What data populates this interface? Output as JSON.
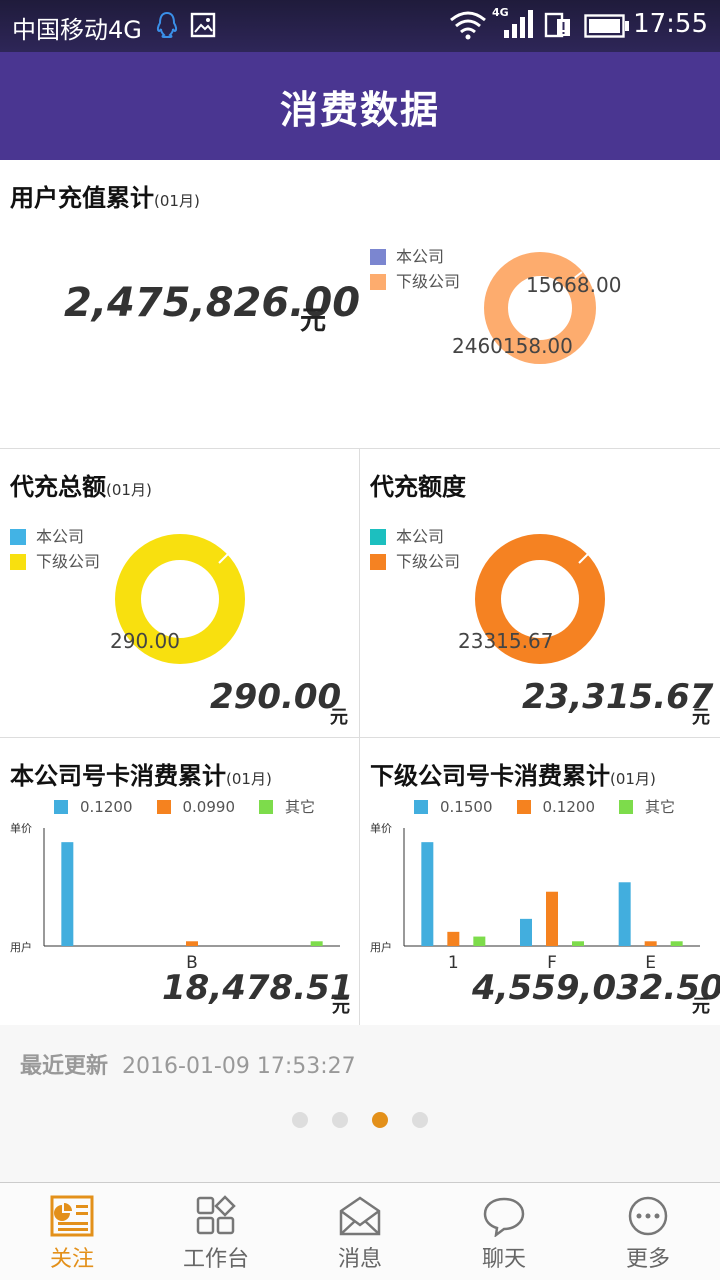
{
  "status": {
    "carrier": "中国移动4G",
    "time": "17:55",
    "net_badge": "4G"
  },
  "header": {
    "title": "消费数据"
  },
  "recharge": {
    "title": "用户充值累计",
    "period": "(01月)",
    "total": "2,475,826.00",
    "unit": "元",
    "legend": [
      {
        "label": "本公司",
        "color": "#7b86d0"
      },
      {
        "label": "下级公司",
        "color": "#fdac6e"
      }
    ],
    "labels": {
      "company": "15668.00",
      "sub": "2460158.00"
    },
    "values": {
      "company": 15668.0,
      "sub": 2460158.0
    }
  },
  "proxy_total": {
    "title": "代充总额",
    "period": "(01月)",
    "total": "290.00",
    "unit": "元",
    "legend": [
      {
        "label": "本公司",
        "color": "#42b3e5"
      },
      {
        "label": "下级公司",
        "color": "#f8e00f"
      }
    ],
    "label": "290.00"
  },
  "proxy_quota": {
    "title": "代充额度",
    "total": "23,315.67",
    "unit": "元",
    "legend": [
      {
        "label": "本公司",
        "color": "#1cbfbf"
      },
      {
        "label": "下级公司",
        "color": "#f58222"
      }
    ],
    "label": "23315.67"
  },
  "company_cards": {
    "title": "本公司号卡消费累计",
    "period": "(01月)",
    "total": "18,478.51",
    "unit": "元",
    "ylabel_top": "单价",
    "ylabel_bottom": "用户",
    "chart_data": {
      "type": "bar",
      "categories": [
        "",
        "B",
        ""
      ],
      "series": [
        {
          "name": "0.1200",
          "color": "#42aede",
          "values": [
            0.88,
            0,
            0
          ]
        },
        {
          "name": "0.0990",
          "color": "#f5821f",
          "values": [
            0,
            0.04,
            0
          ]
        },
        {
          "name": "其它",
          "color": "#7ddc4b",
          "values": [
            0,
            0,
            0.04
          ]
        }
      ]
    }
  },
  "sub_cards": {
    "title": "下级公司号卡消费累计",
    "period": "(01月)",
    "total": "4,559,032.50",
    "unit": "元",
    "ylabel_top": "单价",
    "ylabel_bottom": "用户",
    "chart_data": {
      "type": "bar",
      "categories": [
        "1",
        "F",
        "E"
      ],
      "series": [
        {
          "name": "0.1500",
          "color": "#42aede",
          "values": [
            0.88,
            0.23,
            0.54
          ]
        },
        {
          "name": "0.1200",
          "color": "#f5821f",
          "values": [
            0.12,
            0.46,
            0.04
          ]
        },
        {
          "name": "其它",
          "color": "#7ddc4b",
          "values": [
            0.08,
            0.04,
            0.04
          ]
        }
      ]
    }
  },
  "updated": {
    "label": "最近更新",
    "value": "2016-01-09 17:53:27"
  },
  "pager": {
    "count": 4,
    "active": 2
  },
  "nav": [
    {
      "label": "关注",
      "icon": "follow-icon",
      "active": true
    },
    {
      "label": "工作台",
      "icon": "workbench-icon",
      "active": false
    },
    {
      "label": "消息",
      "icon": "message-icon",
      "active": false
    },
    {
      "label": "聊天",
      "icon": "chat-icon",
      "active": false
    },
    {
      "label": "更多",
      "icon": "more-icon",
      "active": false
    }
  ]
}
